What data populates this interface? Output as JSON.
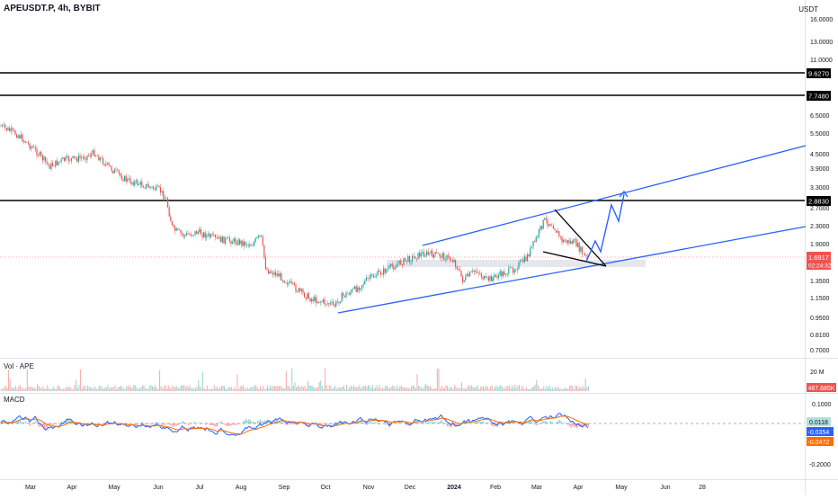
{
  "header": {
    "symbol_line": "APEUSDT.P, 4h, BYBIT"
  },
  "price_axis": {
    "unit": "USDT",
    "ticks": [
      "16.0000",
      "13.0000",
      "11.0000",
      "6.5000",
      "5.5000",
      "4.5000",
      "3.9000",
      "3.3000",
      "2.7000",
      "2.3000",
      "1.9000",
      "1.3500",
      "1.1500",
      "0.9500",
      "0.8100",
      "0.7000"
    ],
    "markers": {
      "level_1": "9.6270",
      "level_2": "7.7480",
      "level_3": "2.8830",
      "last_price": "1.6917",
      "countdown": "02:24:32"
    },
    "colors": {
      "marker_black": "#000000",
      "last_price": "#ef5350",
      "volume_badge": "#ef5350",
      "macd_line_badge": "#2962ff",
      "signal_badge": "#ff6d00",
      "hist_badge": "#26a69a"
    }
  },
  "volume_pane": {
    "label": "Vol · APE",
    "axis_tick": "20 M",
    "badge": "487.685K"
  },
  "macd_pane": {
    "label": "MACD",
    "ticks": [
      "0.1000",
      "-0.2000"
    ],
    "badges": {
      "histogram": "0.0118",
      "macd": "-0.0354",
      "signal": "-0.0472"
    }
  },
  "time_axis": {
    "labels": [
      "Mar",
      "Apr",
      "May",
      "Jun",
      "Jul",
      "Aug",
      "Sep",
      "Oct",
      "Nov",
      "Dec",
      "2024",
      "Feb",
      "Mar",
      "Apr",
      "May",
      "Jun",
      "28"
    ]
  },
  "drawing_colors": {
    "channel": "#2962ff",
    "projection": "#2962ff",
    "wedge": "#000000",
    "horizontal": "#000000"
  }
}
